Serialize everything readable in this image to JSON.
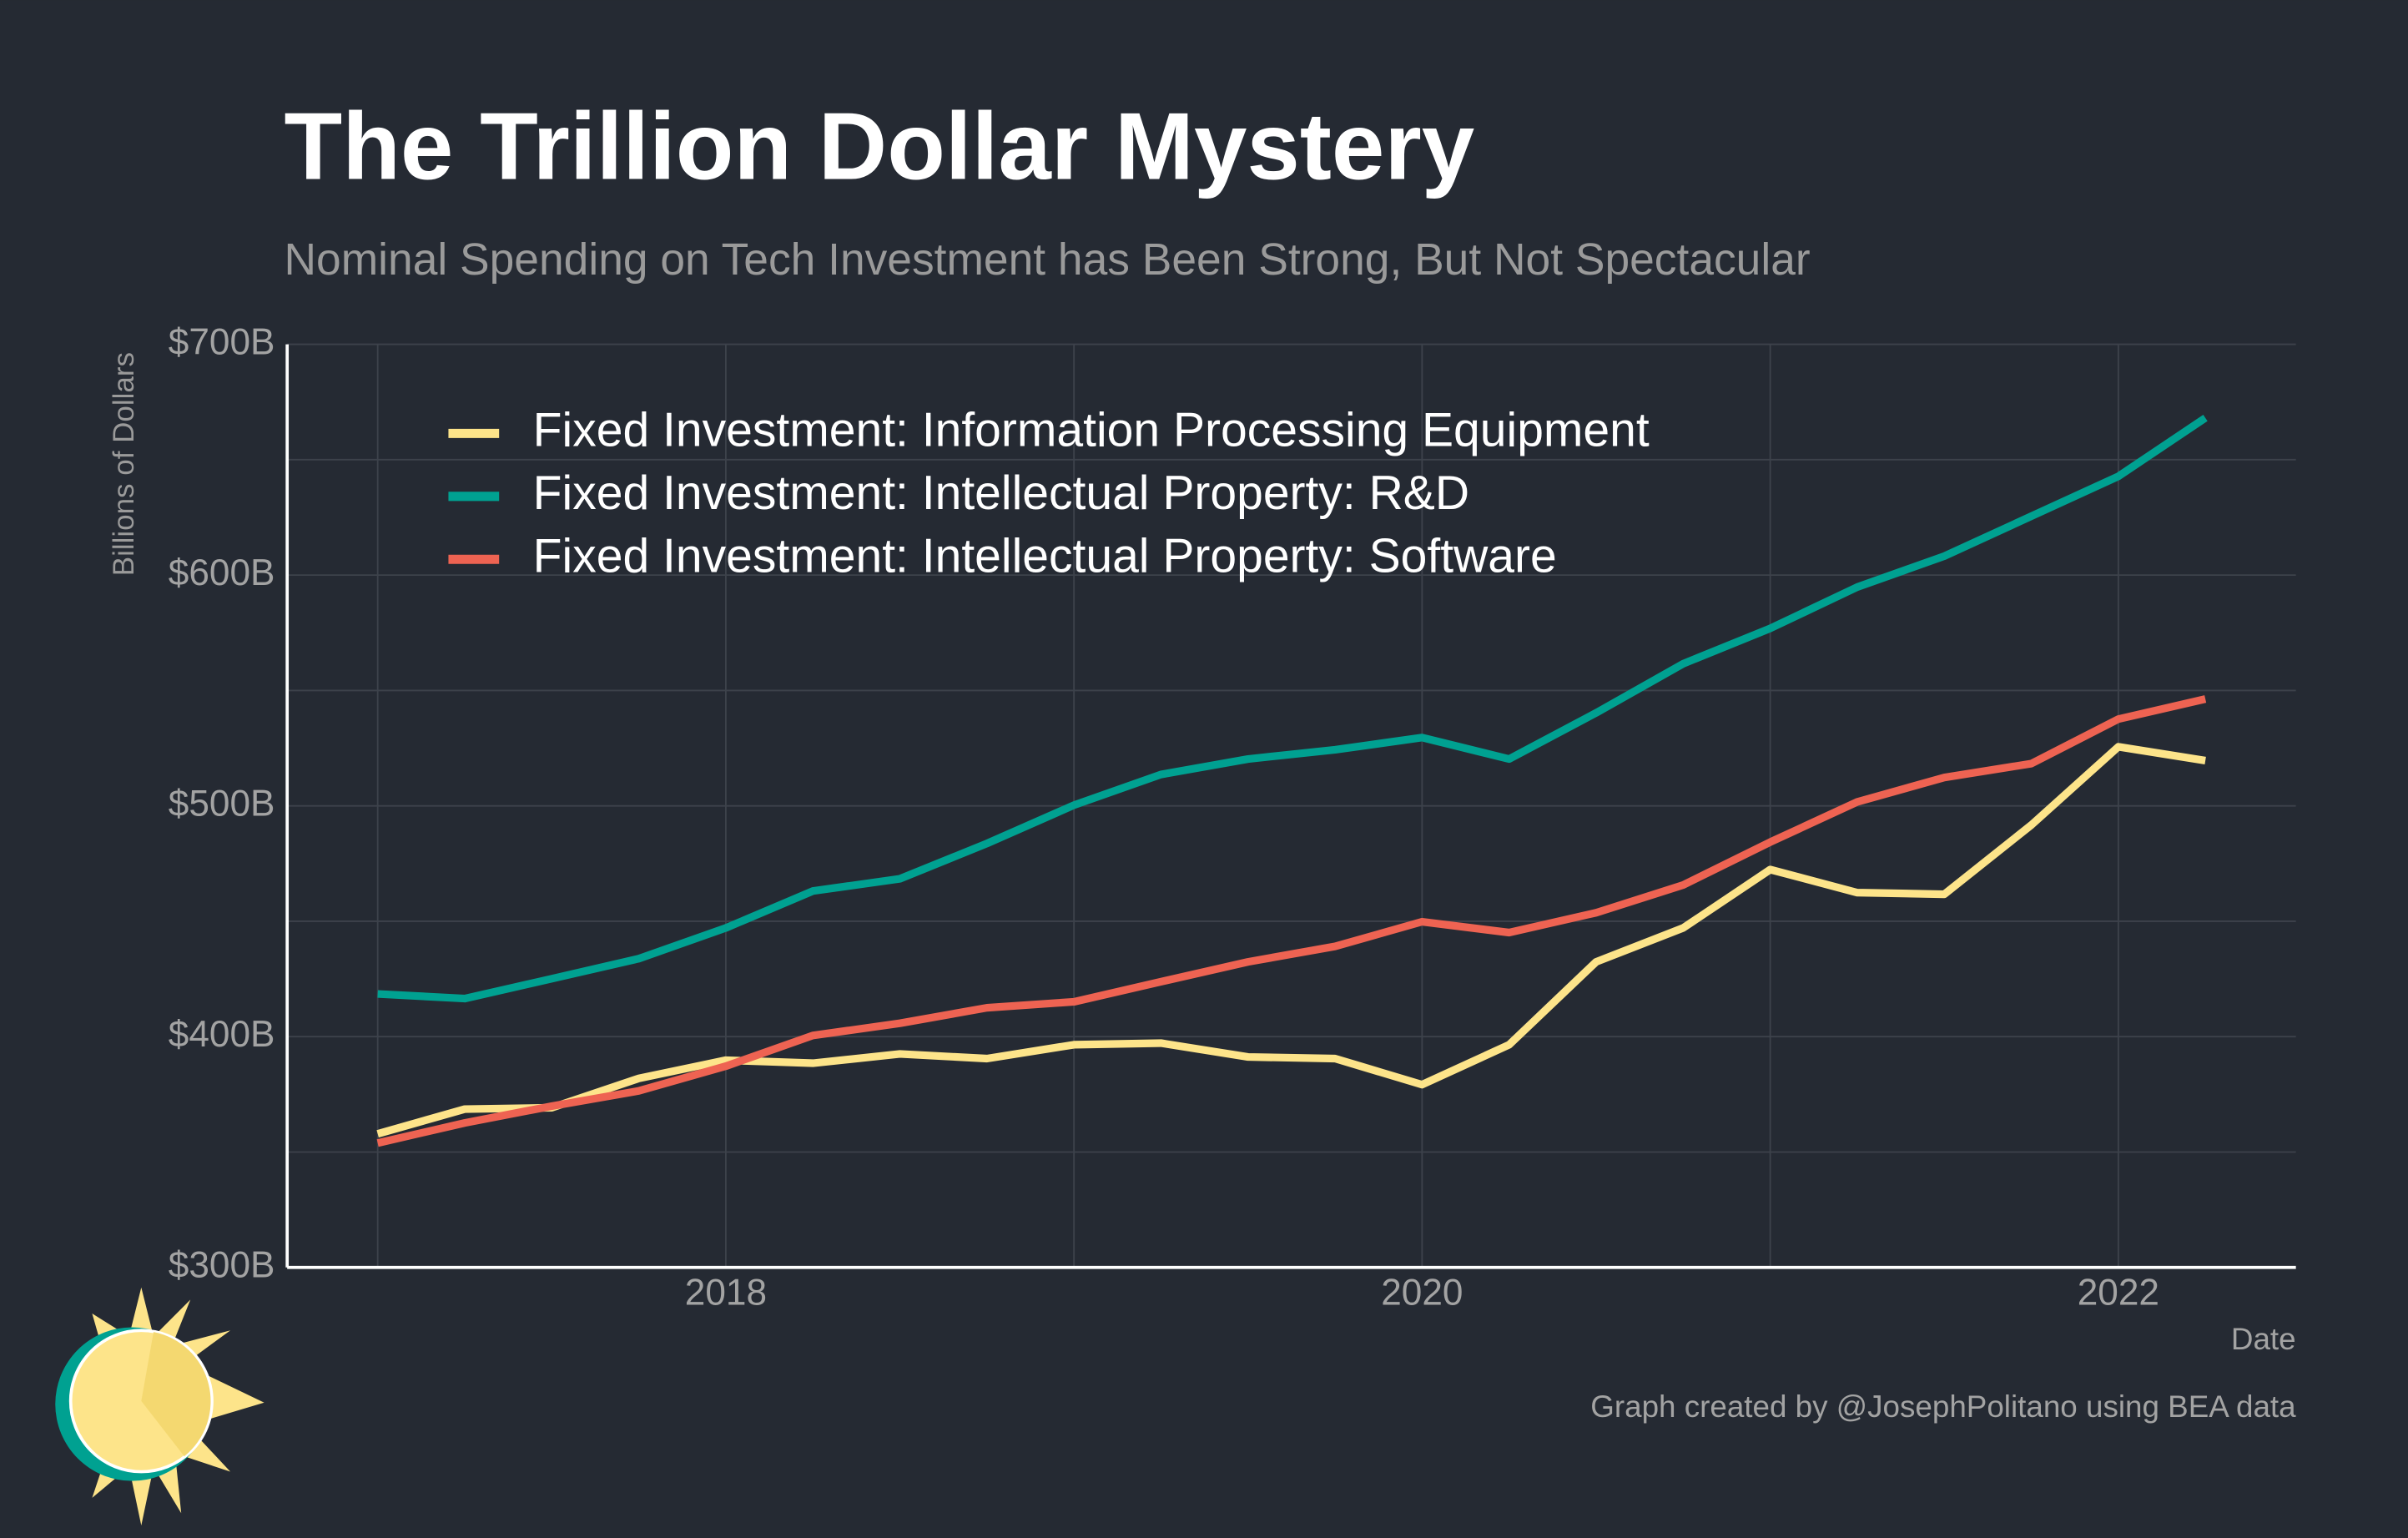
{
  "chart_data": {
    "type": "line",
    "title": "The Trillion Dollar Mystery",
    "subtitle": "Nominal Spending on Tech Investment has Been Strong, But Not Spectacular",
    "y_label": "Billions of Dollars",
    "x_label": "Date",
    "caption": "Graph created by @JosephPolitano using BEA data",
    "x": [
      2017,
      2017.25,
      2017.5,
      2017.75,
      2018,
      2018.25,
      2018.5,
      2018.75,
      2019,
      2019.25,
      2019.5,
      2019.75,
      2020,
      2020.25,
      2020.5,
      2020.75,
      2021,
      2021.25,
      2021.5,
      2021.75,
      2022,
      2022.25
    ],
    "series": [
      {
        "name": "Fixed Investment: Information Processing Equipment",
        "color": "#fde48a",
        "values": [
          357.9,
          368.6,
          369.2,
          381.9,
          389.8,
          388.5,
          392.5,
          390.5,
          396.5,
          397.2,
          391.2,
          390.5,
          379.2,
          396.5,
          432.4,
          447.1,
          472.4,
          462.4,
          461.7,
          491.7,
          525.6,
          519.6
        ]
      },
      {
        "name": "Fixed Investment: Intellectual Property: R&D",
        "color": "#00a191",
        "values": [
          418.5,
          416.5,
          425.1,
          433.8,
          447.1,
          463.1,
          468.4,
          483.7,
          500.3,
          513.6,
          520.3,
          524.3,
          529.6,
          520.3,
          540.3,
          561.6,
          576.9,
          594.8,
          608.2,
          625.5,
          642.8,
          668.1
        ]
      },
      {
        "name": "Fixed Investment: Intellectual Property: Software",
        "color": "#ee6352",
        "values": [
          353.9,
          362.6,
          369.9,
          376.5,
          387.2,
          400.5,
          405.8,
          412.5,
          415.1,
          423.8,
          432.4,
          439.1,
          449.8,
          445.1,
          453.7,
          465.7,
          484.3,
          501.7,
          512.3,
          518.3,
          537.6,
          546.3
        ]
      }
    ],
    "xlim": [
      2016.74,
      2022.51
    ],
    "xticks": [
      2018,
      2020,
      2022
    ],
    "xminor": [
      2017,
      2019,
      2021
    ],
    "ylim": [
      300,
      700
    ],
    "yticks": [
      {
        "value": 300,
        "label": "$300B"
      },
      {
        "value": 400,
        "label": "$400B"
      },
      {
        "value": 500,
        "label": "$500B"
      },
      {
        "value": 600,
        "label": "$600B"
      },
      {
        "value": 700,
        "label": "$700B"
      }
    ],
    "yminor": [
      350,
      450,
      550,
      650
    ],
    "grid": true,
    "legend": "top-left"
  }
}
